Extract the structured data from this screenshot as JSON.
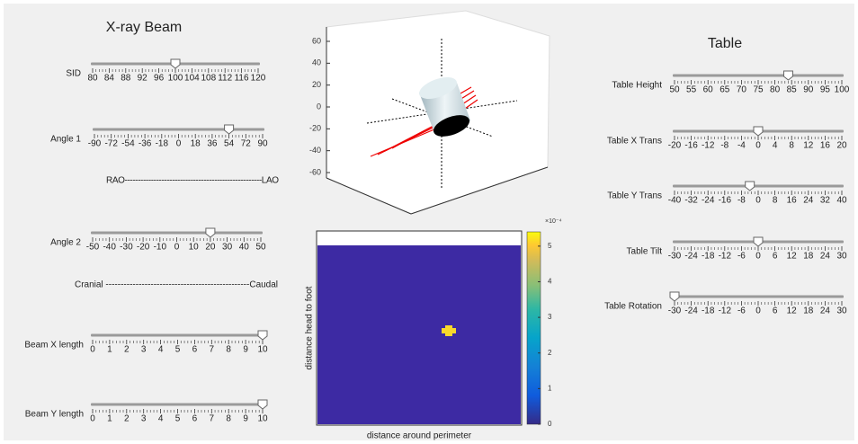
{
  "header": {
    "left_title": "X-ray Beam",
    "right_title": "Table"
  },
  "sliders": [
    {
      "label": "SID",
      "ticks": [
        80,
        84,
        88,
        92,
        96,
        100,
        104,
        108,
        112,
        116,
        120
      ],
      "value": 100
    },
    {
      "label": "Angle 1",
      "ticks": [
        -90,
        -72,
        -54,
        -36,
        -18,
        0,
        18,
        36,
        54,
        72,
        90
      ],
      "value": 54
    },
    {
      "label": "Angle 2",
      "ticks": [
        -50,
        -40,
        -30,
        -20,
        -10,
        0,
        10,
        20,
        30,
        40,
        50
      ],
      "value": 20
    },
    {
      "label": "Beam X length",
      "ticks": [
        0,
        1,
        2,
        3,
        4,
        5,
        6,
        7,
        8,
        9,
        10
      ],
      "value": 10
    },
    {
      "label": "Beam Y length",
      "ticks": [
        0,
        1,
        2,
        3,
        4,
        5,
        6,
        7,
        8,
        9,
        10
      ],
      "value": 10
    },
    {
      "label": "Table Height",
      "ticks": [
        50,
        55,
        60,
        65,
        70,
        75,
        80,
        85,
        90,
        95,
        100
      ],
      "value": 84
    },
    {
      "label": "Table X Trans",
      "ticks": [
        -20,
        -16,
        -12,
        -8,
        -4,
        0,
        4,
        8,
        12,
        16,
        20
      ],
      "value": 0
    },
    {
      "label": "Table Y Trans",
      "ticks": [
        -40,
        -32,
        -24,
        -16,
        -8,
        0,
        8,
        16,
        24,
        32,
        40
      ],
      "value": -4
    },
    {
      "label": "Table Tilt",
      "ticks": [
        -30,
        -24,
        -18,
        -12,
        -6,
        0,
        6,
        12,
        18,
        24,
        30
      ],
      "value": 0
    },
    {
      "label": "Table Rotation",
      "ticks": [
        -30,
        -24,
        -18,
        -12,
        -6,
        0,
        6,
        12,
        18,
        24,
        30
      ],
      "value": -30
    }
  ],
  "direction_labels": [
    "RAO----------------------------------------------------LAO",
    "Cranial ------------------------------------------------Caudal"
  ],
  "plot3d": {
    "zticks": [
      60,
      40,
      20,
      0,
      -20,
      -40,
      -60
    ]
  },
  "heatmap": {
    "xlabel": "distance around perimeter",
    "ylabel": "distance head to foot",
    "colorbar_exponent": "×10⁻⁴",
    "colorbar_ticks": [
      0,
      1,
      2,
      3,
      4,
      5
    ],
    "clim": [
      0,
      5.4
    ]
  }
}
